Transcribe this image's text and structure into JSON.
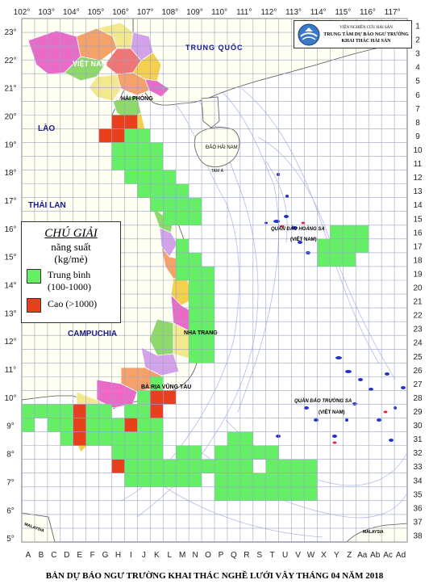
{
  "title": "BẢN DỰ BÁO NGƯ TRƯỜNG KHAI THÁC NGHỀ LƯỚI VÂY THÁNG 04 NĂM 2018",
  "logo": {
    "line1": "VIỆN NGHIÊN CỨU HẢI SẢN",
    "line2": "TRUNG TÂM DỰ BÁO NGƯ TRƯỜNG",
    "line3": "KHAI THÁC HẢI SẢN"
  },
  "legend": {
    "title": "CHÚ GIẢI",
    "subtitle1": "năng suất",
    "subtitle2": "(kg/mẻ)",
    "items": [
      {
        "label1": "Trung bình",
        "label2": "(100-1000)",
        "color": "#66ee66"
      },
      {
        "label1": "Cao (>1000)",
        "label2": "",
        "color": "#e8401c"
      }
    ]
  },
  "lon_labels": [
    "102°",
    "103°",
    "104°",
    "105°",
    "106°",
    "107°",
    "108°",
    "109°",
    "110°",
    "111°",
    "112°",
    "113°",
    "114°",
    "115°",
    "116°",
    "117°"
  ],
  "lat_labels": [
    "23°",
    "22°",
    "21°",
    "20°",
    "19°",
    "18°",
    "17°",
    "16°",
    "15°",
    "14°",
    "13°",
    "12°",
    "11°",
    "10°",
    "9°",
    "8°",
    "7°",
    "6°",
    "5°"
  ],
  "col_labels": [
    "A",
    "B",
    "C",
    "D",
    "E",
    "F",
    "G",
    "H",
    "I",
    "J",
    "K",
    "L",
    "M",
    "N",
    "O",
    "P",
    "Q",
    "R",
    "S",
    "T",
    "U",
    "V",
    "W",
    "X",
    "Y",
    "Z",
    "Aa",
    "Ab",
    "Ac",
    "Ad"
  ],
  "row_labels": [
    "1",
    "2",
    "3",
    "4",
    "5",
    "6",
    "7",
    "8",
    "9",
    "10",
    "11",
    "12",
    "13",
    "14",
    "15",
    "16",
    "17",
    "18",
    "19",
    "20",
    "21",
    "22",
    "23",
    "24",
    "25",
    "26",
    "27",
    "28",
    "29",
    "30",
    "31",
    "32",
    "33",
    "34",
    "35",
    "36",
    "37",
    "38"
  ],
  "place_labels": {
    "trung_quoc": "TRUNG QUỐC",
    "viet_nam": "VIỆT NAM",
    "lao": "LÀO",
    "thai_lan": "THÁI LAN",
    "campuchia": "CAMPUCHIA",
    "hai_phong": "HẢI PHÒNG",
    "dao_hai_nam": "ĐẢO HẢI NAM",
    "tam_a": "TAM Á",
    "hoang_sa": "QUẦN ĐẢO HOÀNG SA",
    "hoang_sa_vn": "(VIỆT NAM)",
    "truong_sa": "QUẦN ĐẢO TRƯỜNG SA",
    "truong_sa_vn": "(VIỆT NAM)",
    "nha_trang": "NHA TRANG",
    "ba_ria_vung_tau": "BÀ RỊA VŨNG TÀU",
    "malaysia_left": "MALAYSIA",
    "malaysia_right": "MALAYSIA"
  },
  "colors": {
    "medium": "#66ee66",
    "high": "#e8401c",
    "grid": "#9aa3c4",
    "land": "#fffff2"
  },
  "forecast_cells": {
    "medium": [
      [
        7,
        8
      ],
      [
        8,
        7
      ],
      [
        8,
        8
      ],
      [
        8,
        9
      ],
      [
        9,
        7
      ],
      [
        9,
        8
      ],
      [
        9,
        9
      ],
      [
        9,
        10
      ],
      [
        10,
        7
      ],
      [
        10,
        8
      ],
      [
        10,
        9
      ],
      [
        10,
        10
      ],
      [
        11,
        8
      ],
      [
        11,
        9
      ],
      [
        11,
        10
      ],
      [
        11,
        11
      ],
      [
        12,
        9
      ],
      [
        12,
        10
      ],
      [
        12,
        11
      ],
      [
        12,
        12
      ],
      [
        13,
        10
      ],
      [
        13,
        11
      ],
      [
        13,
        12
      ],
      [
        13,
        13
      ],
      [
        14,
        11
      ],
      [
        14,
        12
      ],
      [
        14,
        13
      ],
      [
        15,
        24
      ],
      [
        15,
        25
      ],
      [
        15,
        26
      ],
      [
        16,
        12
      ],
      [
        16,
        23
      ],
      [
        16,
        24
      ],
      [
        16,
        25
      ],
      [
        16,
        26
      ],
      [
        17,
        12
      ],
      [
        17,
        13
      ],
      [
        17,
        23
      ],
      [
        17,
        24
      ],
      [
        17,
        25
      ],
      [
        18,
        12
      ],
      [
        18,
        13
      ],
      [
        18,
        14
      ],
      [
        19,
        13
      ],
      [
        19,
        14
      ],
      [
        20,
        13
      ],
      [
        20,
        14
      ],
      [
        21,
        13
      ],
      [
        21,
        14
      ],
      [
        22,
        13
      ],
      [
        22,
        14
      ],
      [
        23,
        13
      ],
      [
        23,
        14
      ],
      [
        24,
        13
      ],
      [
        24,
        14
      ],
      [
        26,
        10
      ],
      [
        27,
        9
      ],
      [
        27,
        10
      ],
      [
        28,
        0
      ],
      [
        28,
        1
      ],
      [
        28,
        2
      ],
      [
        28,
        3
      ],
      [
        28,
        5
      ],
      [
        28,
        6
      ],
      [
        28,
        8
      ],
      [
        28,
        9
      ],
      [
        29,
        0
      ],
      [
        29,
        2
      ],
      [
        29,
        3
      ],
      [
        29,
        5
      ],
      [
        29,
        6
      ],
      [
        29,
        7
      ],
      [
        29,
        9
      ],
      [
        29,
        10
      ],
      [
        30,
        3
      ],
      [
        30,
        5
      ],
      [
        30,
        6
      ],
      [
        30,
        8
      ],
      [
        30,
        9
      ],
      [
        30,
        10
      ],
      [
        30,
        16
      ],
      [
        30,
        17
      ],
      [
        31,
        8
      ],
      [
        31,
        9
      ],
      [
        31,
        10
      ],
      [
        31,
        15
      ],
      [
        31,
        16
      ],
      [
        31,
        17
      ],
      [
        31,
        18
      ],
      [
        31,
        19
      ],
      [
        32,
        9
      ],
      [
        32,
        10
      ],
      [
        32,
        11
      ],
      [
        32,
        12
      ],
      [
        32,
        13
      ],
      [
        32,
        14
      ],
      [
        32,
        15
      ],
      [
        32,
        16
      ],
      [
        32,
        17
      ],
      [
        32,
        19
      ],
      [
        32,
        20
      ],
      [
        32,
        21
      ],
      [
        32,
        22
      ],
      [
        33,
        9
      ],
      [
        33,
        10
      ],
      [
        33,
        11
      ],
      [
        33,
        12
      ],
      [
        33,
        13
      ],
      [
        33,
        15
      ],
      [
        33,
        16
      ],
      [
        33,
        17
      ],
      [
        33,
        18
      ],
      [
        33,
        19
      ],
      [
        33,
        20
      ],
      [
        33,
        21
      ],
      [
        33,
        22
      ],
      [
        34,
        15
      ],
      [
        34,
        16
      ],
      [
        34,
        17
      ],
      [
        34,
        18
      ],
      [
        34,
        19
      ],
      [
        34,
        20
      ],
      [
        34,
        21
      ],
      [
        34,
        22
      ],
      [
        31,
        12
      ],
      [
        31,
        13
      ],
      [
        30,
        7
      ],
      [
        31,
        7
      ],
      [
        32,
        8
      ],
      [
        33,
        8
      ]
    ],
    "high": [
      [
        7,
        7
      ],
      [
        7,
        8
      ],
      [
        8,
        6
      ],
      [
        8,
        7
      ],
      [
        27,
        10
      ],
      [
        27,
        11
      ],
      [
        28,
        4
      ],
      [
        28,
        10
      ],
      [
        29,
        4
      ],
      [
        29,
        8
      ],
      [
        30,
        4
      ],
      [
        32,
        7
      ]
    ]
  }
}
